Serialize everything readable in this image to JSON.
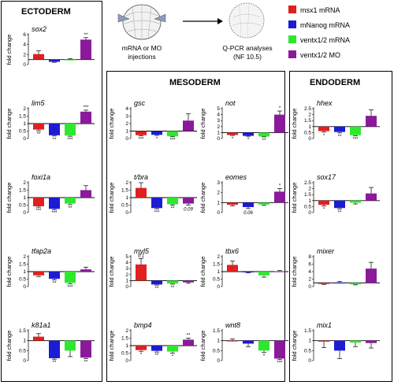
{
  "colors": {
    "msx1": "#e02020",
    "mNanog": "#1c1cd4",
    "ventx_mrna": "#2ee82e",
    "ventx_mo": "#8a1a9a"
  },
  "legend": [
    {
      "key": "msx1",
      "label": "msx1 mRNA"
    },
    {
      "key": "mNanog",
      "label": "mNanog mRNA"
    },
    {
      "key": "ventx_mrna",
      "label": "ventx1/2 mRNA"
    },
    {
      "key": "ventx_mo",
      "label": "ventx1/2 MO"
    }
  ],
  "schematic": {
    "left_line1": "mRNA or MO",
    "left_line2": "injections",
    "right_line1": "Q-PCR analyses",
    "right_line2": "(NF 10.5)"
  },
  "panel_titles": {
    "ectoderm": "ECTODERM",
    "mesoderm": "MESODERM",
    "endoderm": "ENDODERM"
  },
  "y_label": "fold change",
  "chart_data": [
    {
      "type": "bar",
      "gene": "sox2",
      "panel": "ECTODERM",
      "yticks": [
        "0",
        "2",
        "4",
        "6"
      ],
      "ylim": [
        0,
        6
      ],
      "values": [
        2.1,
        0.55,
        1.0,
        5.0
      ],
      "errors": [
        0.7,
        0.1,
        0.15,
        0.4
      ],
      "sig": [
        "",
        "",
        "",
        "**"
      ],
      "pvals": [
        "",
        "",
        "",
        ""
      ]
    },
    {
      "type": "bar",
      "gene": "lim5",
      "panel": "ECTODERM",
      "yticks": [
        "0",
        "0.5",
        "1",
        "1.5",
        "2"
      ],
      "ylim": [
        0,
        2
      ],
      "values": [
        0.6,
        0.22,
        0.2,
        1.8
      ],
      "errors": [
        0.08,
        0.05,
        0.05,
        0.1
      ],
      "sig": [
        "**",
        "**",
        "***",
        "***"
      ],
      "pvals": [
        "",
        "",
        "",
        ""
      ]
    },
    {
      "type": "bar",
      "gene": "foxi1a",
      "panel": "ECTODERM",
      "yticks": [
        "0",
        "0.5",
        "1",
        "1.5",
        "2"
      ],
      "ylim": [
        0,
        2
      ],
      "values": [
        0.42,
        0.25,
        0.6,
        1.5
      ],
      "errors": [
        0.06,
        0.05,
        0.07,
        0.3
      ],
      "sig": [
        "***",
        "***",
        "**",
        ""
      ],
      "pvals": [
        "",
        "",
        "",
        ""
      ]
    },
    {
      "type": "bar",
      "gene": "tfap2a",
      "panel": "ECTODERM",
      "yticks": [
        "0",
        "0.5",
        "1",
        "1.5",
        "2"
      ],
      "ylim": [
        0,
        2
      ],
      "values": [
        0.75,
        0.52,
        0.25,
        1.15
      ],
      "errors": [
        0.08,
        0.08,
        0.06,
        0.15
      ],
      "sig": [
        "",
        "**",
        "***",
        ""
      ],
      "pvals": [
        "",
        "",
        "",
        ""
      ]
    },
    {
      "type": "bar",
      "gene": "k81a1",
      "panel": "ECTODERM",
      "yticks": [
        "0",
        "0.5",
        "1",
        "1.5"
      ],
      "ylim": [
        0,
        1.5
      ],
      "values": [
        1.2,
        0.12,
        0.5,
        0.15
      ],
      "errors": [
        0.15,
        0.05,
        0.3,
        0.05
      ],
      "sig": [
        "",
        "**",
        "",
        "**"
      ],
      "pvals": [
        "",
        "",
        "",
        ""
      ]
    },
    {
      "type": "bar",
      "gene": "gsc",
      "panel": "MESODERM",
      "yticks": [
        "0",
        "1",
        "2",
        "3",
        "4"
      ],
      "ylim": [
        0,
        4
      ],
      "values": [
        0.45,
        0.5,
        0.3,
        2.4
      ],
      "errors": [
        0.08,
        0.08,
        0.06,
        0.9
      ],
      "sig": [
        "***",
        "*",
        "***",
        ""
      ],
      "pvals": [
        "",
        "",
        "",
        ""
      ]
    },
    {
      "type": "bar",
      "gene": "not",
      "panel": "MESODERM",
      "yticks": [
        "0",
        "1",
        "2",
        "3",
        "4",
        "5"
      ],
      "ylim": [
        0,
        5
      ],
      "values": [
        0.6,
        0.45,
        0.35,
        4.0
      ],
      "errors": [
        0.08,
        0.07,
        0.07,
        0.6
      ],
      "sig": [
        "*",
        "*",
        "**",
        "*"
      ],
      "pvals": [
        "",
        "",
        "",
        ""
      ]
    },
    {
      "type": "bar",
      "gene": "t/bra",
      "panel": "MESODERM",
      "yticks": [
        "0",
        "0.5",
        "1",
        "1.5",
        "2"
      ],
      "ylim": [
        0,
        2
      ],
      "values": [
        1.65,
        0.3,
        0.55,
        0.6
      ],
      "errors": [
        0.35,
        0.05,
        0.06,
        0.1
      ],
      "sig": [
        "",
        "***",
        "**",
        ""
      ],
      "pvals": [
        "",
        "",
        "",
        "0.09"
      ]
    },
    {
      "type": "bar",
      "gene": "eomes",
      "panel": "MESODERM",
      "yticks": [
        "0",
        "1",
        "2",
        "3"
      ],
      "ylim": [
        0,
        3
      ],
      "values": [
        0.78,
        0.55,
        0.8,
        2.1
      ],
      "errors": [
        0.12,
        0.15,
        0.08,
        0.3
      ],
      "sig": [
        "",
        "",
        "",
        "*"
      ],
      "pvals": [
        "",
        "0.06",
        "",
        ""
      ]
    },
    {
      "type": "bar",
      "gene": "myl5",
      "panel": "MESODERM",
      "yticks": [
        "0",
        "1",
        "2",
        "3",
        "4",
        "5"
      ],
      "ylim": [
        0,
        5
      ],
      "values": [
        3.7,
        0.35,
        0.5,
        0.7
      ],
      "errors": [
        1.0,
        0.1,
        0.1,
        0.15
      ],
      "sig": [
        "",
        "**",
        "**",
        ""
      ],
      "pvals": [
        "0.1",
        "",
        "",
        ""
      ]
    },
    {
      "type": "bar",
      "gene": "tbx6",
      "panel": "MESODERM",
      "yticks": [
        "0",
        "0.5",
        "1",
        "1.5",
        "2"
      ],
      "ylim": [
        0,
        2
      ],
      "values": [
        1.45,
        0.95,
        0.75,
        1.02
      ],
      "errors": [
        0.25,
        0.03,
        0.12,
        0.05
      ],
      "sig": [
        "",
        "",
        "",
        ""
      ],
      "pvals": [
        "",
        "",
        "",
        ""
      ]
    },
    {
      "type": "bar",
      "gene": "bmp4",
      "panel": "MESODERM",
      "yticks": [
        "0",
        "0.5",
        "1",
        "1.5",
        "2"
      ],
      "ylim": [
        0,
        2
      ],
      "values": [
        0.7,
        0.65,
        0.6,
        1.4
      ],
      "errors": [
        0.08,
        0.08,
        0.1,
        0.1
      ],
      "sig": [
        "*",
        "**",
        "*",
        "**"
      ],
      "pvals": [
        "",
        "",
        "",
        ""
      ]
    },
    {
      "type": "bar",
      "gene": "wnt8",
      "panel": "MESODERM",
      "yticks": [
        "0",
        "0.5",
        "1",
        "1.5"
      ],
      "ylim": [
        0,
        1.5
      ],
      "values": [
        1.0,
        0.85,
        0.5,
        0.1
      ],
      "errors": [
        0.08,
        0.15,
        0.1,
        0.05
      ],
      "sig": [
        "",
        "",
        "*",
        "***"
      ],
      "pvals": [
        "",
        "",
        "",
        ""
      ]
    },
    {
      "type": "bar",
      "gene": "hhex",
      "panel": "ENDODERM",
      "yticks": [
        "0",
        "0.5",
        "1",
        "1.5",
        "2",
        "2.5"
      ],
      "ylim": [
        0,
        2.5
      ],
      "values": [
        0.62,
        0.55,
        0.28,
        1.9
      ],
      "errors": [
        0.08,
        0.08,
        0.05,
        0.5
      ],
      "sig": [
        "*",
        "**",
        "***",
        ""
      ],
      "pvals": [
        "",
        "",
        "",
        ""
      ]
    },
    {
      "type": "bar",
      "gene": "sox17",
      "panel": "ENDODERM",
      "yticks": [
        "0",
        "0.5",
        "1",
        "1.5",
        "2",
        "2.5"
      ],
      "ylim": [
        0,
        2.5
      ],
      "values": [
        0.65,
        0.38,
        0.82,
        1.6
      ],
      "errors": [
        0.1,
        0.07,
        0.1,
        0.5
      ],
      "sig": [
        "*",
        "**",
        "",
        ""
      ],
      "pvals": [
        "",
        "",
        "",
        ""
      ]
    },
    {
      "type": "bar",
      "gene": "mixer",
      "panel": "ENDODERM",
      "yticks": [
        "0",
        "2",
        "4",
        "6",
        "8"
      ],
      "ylim": [
        0,
        8
      ],
      "values": [
        0.7,
        1.05,
        0.6,
        4.8
      ],
      "errors": [
        0.12,
        0.3,
        0.15,
        1.7
      ],
      "sig": [
        "",
        "",
        "",
        ""
      ],
      "pvals": [
        "",
        "",
        "",
        ""
      ]
    },
    {
      "type": "bar",
      "gene": "mix1",
      "panel": "ENDODERM",
      "yticks": [
        "0",
        "0.5",
        "1",
        "1.5"
      ],
      "ylim": [
        0,
        1.5
      ],
      "values": [
        0.95,
        0.5,
        0.9,
        0.88
      ],
      "errors": [
        0.3,
        0.4,
        0.2,
        0.25
      ],
      "sig": [
        "",
        "",
        "",
        ""
      ],
      "pvals": [
        "",
        "",
        "",
        ""
      ]
    }
  ]
}
